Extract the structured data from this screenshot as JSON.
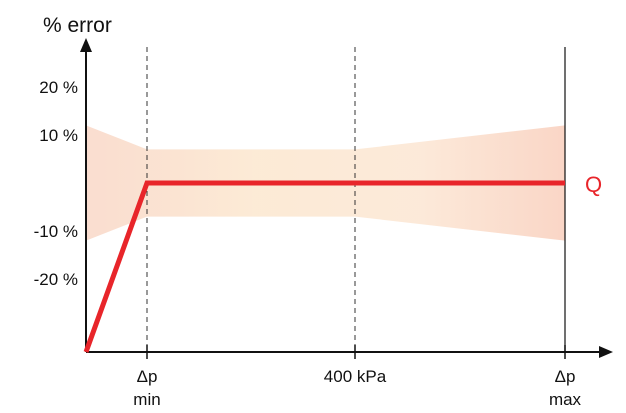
{
  "chart_data": {
    "type": "line",
    "title": "",
    "ylabel": "% error",
    "xlabel": "",
    "y_ticks": [
      {
        "value": 20,
        "label": "20 %"
      },
      {
        "value": 10,
        "label": "10 %"
      },
      {
        "value": -10,
        "label": "-10 %"
      },
      {
        "value": -20,
        "label": "-20 %"
      }
    ],
    "x_ticks": [
      {
        "key": "dp_min",
        "line1": "Δp",
        "line2": "min"
      },
      {
        "key": "p400",
        "line1": "400 kPa",
        "line2": ""
      },
      {
        "key": "dp_max",
        "line1": "Δp",
        "line2": "max"
      }
    ],
    "series": [
      {
        "name": "Q",
        "color": "#e8252a",
        "points": [
          {
            "x": "origin",
            "y": -40
          },
          {
            "x": "dp_min",
            "y": 0
          },
          {
            "x": "dp_max",
            "y": 0
          }
        ]
      }
    ],
    "error_band": {
      "color": "#f6c3a8",
      "upper": [
        {
          "x": "origin",
          "y": 12
        },
        {
          "x": "dp_min",
          "y": 7
        },
        {
          "x": "p400",
          "y": 7
        },
        {
          "x": "dp_max",
          "y": 12
        }
      ],
      "lower": [
        {
          "x": "origin",
          "y": -12
        },
        {
          "x": "dp_min",
          "y": -7
        },
        {
          "x": "p400",
          "y": -7
        },
        {
          "x": "dp_max",
          "y": -12
        }
      ]
    },
    "grid": false,
    "dashed_guides_at": [
      "dp_min",
      "p400"
    ],
    "solid_guide_at": "dp_max"
  }
}
